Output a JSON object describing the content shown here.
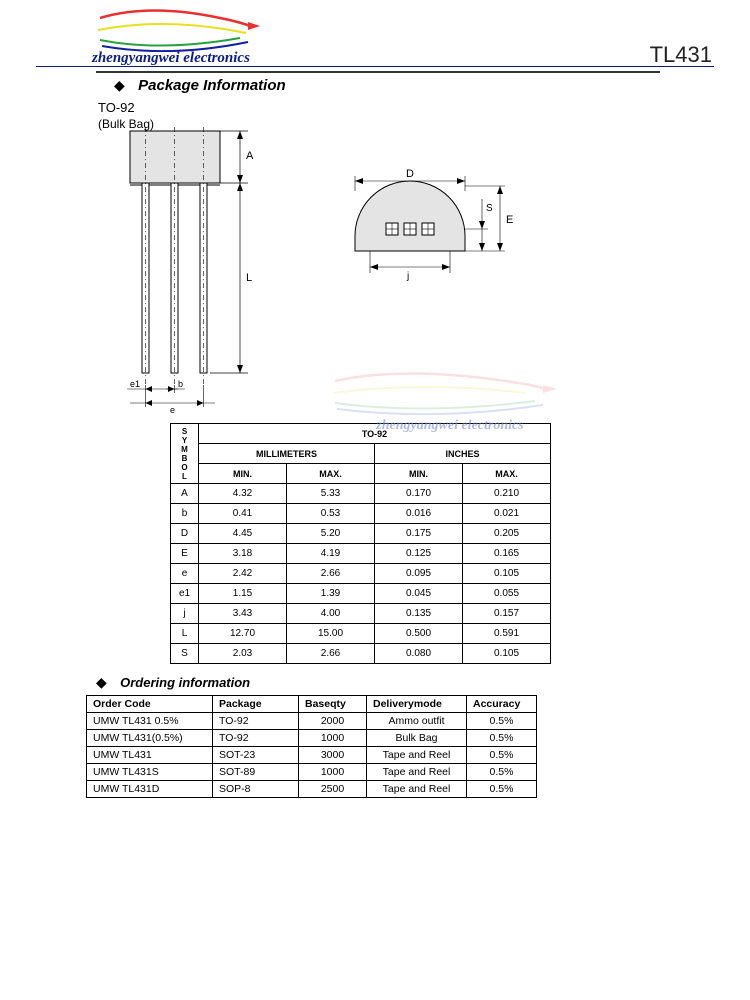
{
  "header": {
    "brand": "zhengyangwei electronics",
    "part": "TL431"
  },
  "section1": {
    "title": "Package Information",
    "pkgname": "TO-92",
    "pkgtype": "(Bulk Bag)"
  },
  "watermark": "zhengyangwei electronics",
  "dimTable": {
    "topLabel": "TO-92",
    "symbolLabel": "SYMBOL",
    "unit1": "MILLIMETERS",
    "unit2": "INCHES",
    "min": "MIN.",
    "max": "MAX.",
    "rows": [
      {
        "s": "A",
        "mmMin": "4.32",
        "mmMax": "5.33",
        "inMin": "0.170",
        "inMax": "0.210"
      },
      {
        "s": "b",
        "mmMin": "0.41",
        "mmMax": "0.53",
        "inMin": "0.016",
        "inMax": "0.021"
      },
      {
        "s": "D",
        "mmMin": "4.45",
        "mmMax": "5.20",
        "inMin": "0.175",
        "inMax": "0.205"
      },
      {
        "s": "E",
        "mmMin": "3.18",
        "mmMax": "4.19",
        "inMin": "0.125",
        "inMax": "0.165"
      },
      {
        "s": "e",
        "mmMin": "2.42",
        "mmMax": "2.66",
        "inMin": "0.095",
        "inMax": "0.105"
      },
      {
        "s": "e1",
        "mmMin": "1.15",
        "mmMax": "1.39",
        "inMin": "0.045",
        "inMax": "0.055"
      },
      {
        "s": "j",
        "mmMin": "3.43",
        "mmMax": "4.00",
        "inMin": "0.135",
        "inMax": "0.157"
      },
      {
        "s": "L",
        "mmMin": "12.70",
        "mmMax": "15.00",
        "inMin": "0.500",
        "inMax": "0.591"
      },
      {
        "s": "S",
        "mmMin": "2.03",
        "mmMax": "2.66",
        "inMin": "0.080",
        "inMax": "0.105"
      }
    ]
  },
  "section2": {
    "title": "Ordering information"
  },
  "orderTable": {
    "headers": [
      "Order Code",
      "Package",
      "Baseqty",
      "Deliverymode",
      "Accuracy"
    ],
    "rows": [
      [
        "UMW TL431 0.5%",
        "TO-92",
        "2000",
        "Ammo outfit",
        "0.5%"
      ],
      [
        "UMW TL431(0.5%)",
        "TO-92",
        "1000",
        "Bulk Bag",
        "0.5%"
      ],
      [
        "UMW TL431",
        "SOT-23",
        "3000",
        "Tape and Reel",
        "0.5%"
      ],
      [
        "UMW TL431S",
        "SOT-89",
        "1000",
        "Tape and Reel",
        "0.5%"
      ],
      [
        "UMW TL431D",
        "SOP-8",
        "2500",
        "Tape and Reel",
        "0.5%"
      ]
    ]
  },
  "diagram": {
    "labels": {
      "A": "A",
      "L": "L",
      "e": "e",
      "e1": "e1",
      "b": "b",
      "D": "D",
      "E": "E",
      "S": "S",
      "j": "j"
    },
    "colors": {
      "arrow_red": "#e83030",
      "arrow_yellow": "#e6e020",
      "arrow_green": "#2aa040",
      "underline_blue": "#1020a0"
    }
  }
}
